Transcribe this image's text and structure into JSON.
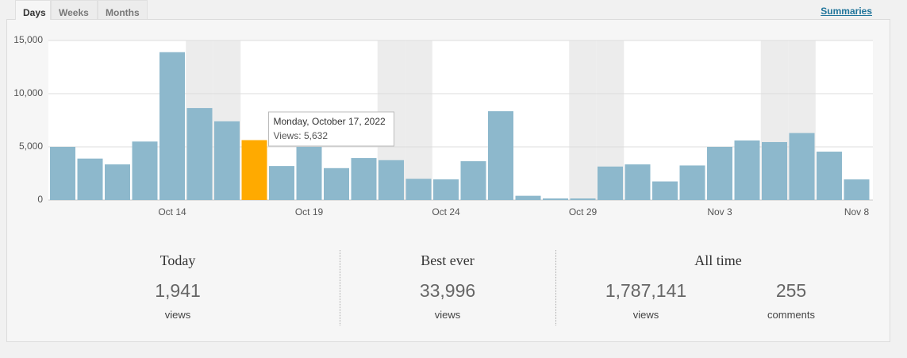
{
  "tabs": [
    "Days",
    "Weeks",
    "Months"
  ],
  "active_tab": 0,
  "summaries_link": "Summaries",
  "chart_data": {
    "type": "bar",
    "categories": [
      null,
      null,
      null,
      null,
      "Oct 14",
      null,
      null,
      null,
      null,
      "Oct 19",
      null,
      null,
      null,
      null,
      "Oct 24",
      null,
      null,
      null,
      null,
      "Oct 29",
      null,
      null,
      null,
      null,
      "Nov 3",
      null,
      null,
      null,
      null,
      "Nov 8"
    ],
    "values": [
      5000,
      3900,
      3350,
      5500,
      13900,
      8650,
      7400,
      5632,
      3200,
      5000,
      3000,
      3950,
      3750,
      2000,
      1950,
      3650,
      8350,
      400,
      150,
      150,
      3150,
      3350,
      1750,
      3250,
      5000,
      5600,
      5450,
      6300,
      4550,
      1941
    ],
    "color": "#8db8cc",
    "highlight_index": 7,
    "highlight_color": "#ffaa00",
    "ylim": [
      0,
      15000
    ],
    "yticks": [
      0,
      {
        "value": 5000,
        "label": "5,000"
      },
      {
        "value": 10000,
        "label": "10,000"
      },
      {
        "value": 15000,
        "label": "15,000"
      }
    ],
    "grid": true,
    "tooltip": {
      "title": "Monday, October 17, 2022",
      "label": "Views: 5,632"
    }
  },
  "stats": [
    {
      "title": "Today",
      "items": [
        {
          "value": "1,941",
          "label": "views"
        }
      ]
    },
    {
      "title": "Best ever",
      "items": [
        {
          "value": "33,996",
          "label": "views"
        }
      ]
    },
    {
      "title": "All time",
      "items": [
        {
          "value": "1,787,141",
          "label": "views"
        },
        {
          "value": "255",
          "label": "comments"
        }
      ]
    }
  ]
}
